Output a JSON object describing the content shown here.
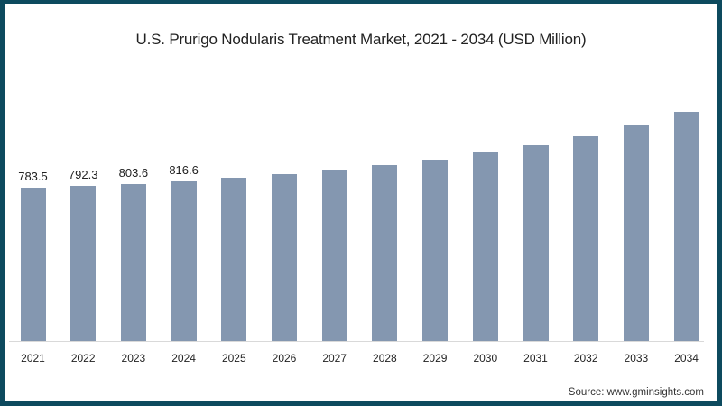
{
  "title": "U.S. Prurigo Nodularis Treatment Market, 2021 - 2034 (USD Million)",
  "source": "Source: www.gminsights.com",
  "colors": {
    "bar": "#8497b0",
    "border": "#0d4a5e",
    "background": "#ffffff"
  },
  "chart_data": {
    "type": "bar",
    "title": "U.S. Prurigo Nodularis Treatment Market, 2021 - 2034 (USD Million)",
    "xlabel": "",
    "ylabel": "USD Million",
    "categories": [
      "2021",
      "2022",
      "2023",
      "2024",
      "2025",
      "2026",
      "2027",
      "2028",
      "2029",
      "2030",
      "2031",
      "2032",
      "2033",
      "2034"
    ],
    "values": [
      783.5,
      792.3,
      803.6,
      816.6,
      833,
      852,
      875,
      899,
      926,
      963,
      1000,
      1046,
      1101,
      1170
    ],
    "data_labels": [
      "783.5",
      "792.3",
      "803.6",
      "816.6",
      "",
      "",
      "",
      "",
      "",
      "",
      "",
      "",
      "",
      ""
    ],
    "grid": false,
    "legend": null
  }
}
